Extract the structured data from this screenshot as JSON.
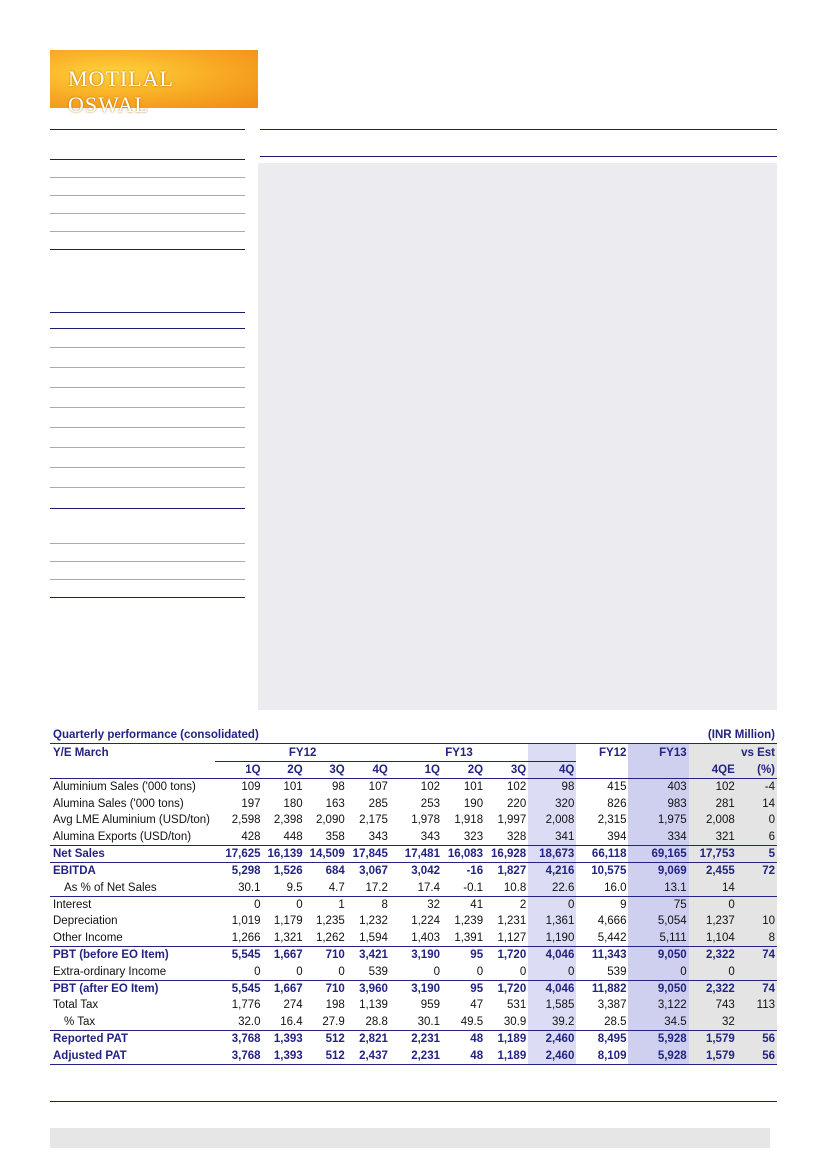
{
  "logo": "MOTILAL OSWAL",
  "table": {
    "title": "Quarterly performance (consolidated)",
    "unit": "(INR Million)",
    "header_1": [
      "Y/E March",
      "FY12",
      "FY13",
      "FY12",
      "FY13",
      "vs Est"
    ],
    "header_2": [
      "1Q",
      "2Q",
      "3Q",
      "4Q",
      "1Q",
      "2Q",
      "3Q",
      "4Q",
      null,
      null,
      "4QE",
      "(%)"
    ],
    "rows": [
      {
        "label": "Aluminium Sales ('000 tons)",
        "values": [
          "109",
          "101",
          "98",
          "107",
          "102",
          "101",
          "102",
          "98",
          "415",
          "403",
          "102",
          "-4"
        ]
      },
      {
        "label": "Alumina Sales ('000 tons)",
        "values": [
          "197",
          "180",
          "163",
          "285",
          "253",
          "190",
          "220",
          "320",
          "826",
          "983",
          "281",
          "14"
        ]
      },
      {
        "label": "Avg LME Aluminium (USD/ton)",
        "values": [
          "2,598",
          "2,398",
          "2,090",
          "2,175",
          "1,978",
          "1,918",
          "1,997",
          "2,008",
          "2,315",
          "1,975",
          "2,008",
          "0"
        ]
      },
      {
        "label": "Alumina Exports (USD/ton)",
        "values": [
          "428",
          "448",
          "358",
          "343",
          "343",
          "323",
          "328",
          "341",
          "394",
          "334",
          "321",
          "6"
        ]
      },
      {
        "label": "Net Sales",
        "values": [
          "17,625",
          "16,139",
          "14,509",
          "17,845",
          "17,481",
          "16,083",
          "16,928",
          "18,673",
          "66,118",
          "69,165",
          "17,753",
          "5"
        ]
      },
      {
        "label": "EBITDA",
        "values": [
          "5,298",
          "1,526",
          "684",
          "3,067",
          "3,042",
          "-16",
          "1,827",
          "4,216",
          "10,575",
          "9,069",
          "2,455",
          "72"
        ]
      },
      {
        "label": "As % of Net Sales",
        "values": [
          "30.1",
          "9.5",
          "4.7",
          "17.2",
          "17.4",
          "-0.1",
          "10.8",
          "22.6",
          "16.0",
          "13.1",
          "14",
          null
        ]
      },
      {
        "label": "Interest",
        "values": [
          "0",
          "0",
          "1",
          "8",
          "32",
          "41",
          "2",
          "0",
          "9",
          "75",
          "0",
          null
        ]
      },
      {
        "label": "Depreciation",
        "values": [
          "1,019",
          "1,179",
          "1,235",
          "1,232",
          "1,224",
          "1,239",
          "1,231",
          "1,361",
          "4,666",
          "5,054",
          "1,237",
          "10"
        ]
      },
      {
        "label": "Other Income",
        "values": [
          "1,266",
          "1,321",
          "1,262",
          "1,594",
          "1,403",
          "1,391",
          "1,127",
          "1,190",
          "5,442",
          "5,111",
          "1,104",
          "8"
        ]
      },
      {
        "label": "PBT (before EO Item)",
        "values": [
          "5,545",
          "1,667",
          "710",
          "3,421",
          "3,190",
          "95",
          "1,720",
          "4,046",
          "11,343",
          "9,050",
          "2,322",
          "74"
        ]
      },
      {
        "label": "Extra-ordinary Income",
        "values": [
          "0",
          "0",
          "0",
          "539",
          "0",
          "0",
          "0",
          "0",
          "539",
          "0",
          "0",
          null
        ]
      },
      {
        "label": "PBT (after EO Item)",
        "values": [
          "5,545",
          "1,667",
          "710",
          "3,960",
          "3,190",
          "95",
          "1,720",
          "4,046",
          "11,882",
          "9,050",
          "2,322",
          "74"
        ]
      },
      {
        "label": "Total Tax",
        "values": [
          "1,776",
          "274",
          "198",
          "1,139",
          "959",
          "47",
          "531",
          "1,585",
          "3,387",
          "3,122",
          "743",
          "113"
        ]
      },
      {
        "label": "% Tax",
        "values": [
          "32.0",
          "16.4",
          "27.9",
          "28.8",
          "30.1",
          "49.5",
          "30.9",
          "39.2",
          "28.5",
          "34.5",
          "32",
          null
        ]
      },
      {
        "label": "Reported PAT",
        "values": [
          "3,768",
          "1,393",
          "512",
          "2,821",
          "2,231",
          "48",
          "1,189",
          "2,460",
          "8,495",
          "5,928",
          "1,579",
          "56"
        ]
      },
      {
        "label": "Adjusted PAT",
        "values": [
          "3,768",
          "1,393",
          "512",
          "2,437",
          "2,231",
          "48",
          "1,189",
          "2,460",
          "8,109",
          "5,928",
          "1,579",
          "56"
        ]
      }
    ]
  }
}
